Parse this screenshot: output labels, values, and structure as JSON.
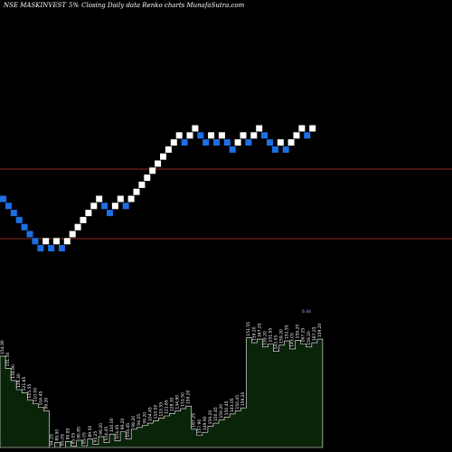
{
  "header": {
    "symbol": "NSE MASKINVEST",
    "box_size": "5%",
    "desc": "Closing Daily data  Renko  charts MunafaSutra.com"
  },
  "colors": {
    "background": "#000000",
    "up_brick": "#ffffff",
    "down_brick": "#1e6fe6",
    "ref_line": "#8b2c1f",
    "volume_fill": "#0a240a",
    "volume_stroke": "#ffffff",
    "vol_label": "#ffffff",
    "special_label": "#8fb4ff"
  },
  "chart_data": {
    "type": "renko",
    "reference_levels": [
      "upper",
      "lower"
    ],
    "bricks": [
      {
        "i": 0,
        "level": 0,
        "dir": "down"
      },
      {
        "i": 1,
        "level": -1,
        "dir": "down"
      },
      {
        "i": 2,
        "level": -2,
        "dir": "down"
      },
      {
        "i": 3,
        "level": -3,
        "dir": "down"
      },
      {
        "i": 4,
        "level": -4,
        "dir": "down"
      },
      {
        "i": 5,
        "level": -5,
        "dir": "down"
      },
      {
        "i": 6,
        "level": -6,
        "dir": "down"
      },
      {
        "i": 7,
        "level": -7,
        "dir": "down"
      },
      {
        "i": 8,
        "level": -6,
        "dir": "up"
      },
      {
        "i": 9,
        "level": -7,
        "dir": "down"
      },
      {
        "i": 10,
        "level": -6,
        "dir": "up"
      },
      {
        "i": 11,
        "level": -7,
        "dir": "down"
      },
      {
        "i": 12,
        "level": -6,
        "dir": "up"
      },
      {
        "i": 13,
        "level": -5,
        "dir": "up"
      },
      {
        "i": 14,
        "level": -4,
        "dir": "up"
      },
      {
        "i": 15,
        "level": -3,
        "dir": "up"
      },
      {
        "i": 16,
        "level": -2,
        "dir": "up"
      },
      {
        "i": 17,
        "level": -1,
        "dir": "up"
      },
      {
        "i": 18,
        "level": 0,
        "dir": "up"
      },
      {
        "i": 19,
        "level": -1,
        "dir": "down"
      },
      {
        "i": 20,
        "level": -2,
        "dir": "down"
      },
      {
        "i": 21,
        "level": -1,
        "dir": "up"
      },
      {
        "i": 22,
        "level": 0,
        "dir": "up"
      },
      {
        "i": 23,
        "level": -1,
        "dir": "down"
      },
      {
        "i": 24,
        "level": 0,
        "dir": "up"
      },
      {
        "i": 25,
        "level": 1,
        "dir": "up"
      },
      {
        "i": 26,
        "level": 2,
        "dir": "up"
      },
      {
        "i": 27,
        "level": 3,
        "dir": "up"
      },
      {
        "i": 28,
        "level": 4,
        "dir": "up"
      },
      {
        "i": 29,
        "level": 5,
        "dir": "up"
      },
      {
        "i": 30,
        "level": 6,
        "dir": "up"
      },
      {
        "i": 31,
        "level": 7,
        "dir": "up"
      },
      {
        "i": 32,
        "level": 8,
        "dir": "up"
      },
      {
        "i": 33,
        "level": 9,
        "dir": "up"
      },
      {
        "i": 34,
        "level": 8,
        "dir": "down"
      },
      {
        "i": 35,
        "level": 9,
        "dir": "up"
      },
      {
        "i": 36,
        "level": 10,
        "dir": "up"
      },
      {
        "i": 37,
        "level": 9,
        "dir": "down"
      },
      {
        "i": 38,
        "level": 8,
        "dir": "down"
      },
      {
        "i": 39,
        "level": 9,
        "dir": "up"
      },
      {
        "i": 40,
        "level": 8,
        "dir": "down"
      },
      {
        "i": 41,
        "level": 9,
        "dir": "up"
      },
      {
        "i": 42,
        "level": 8,
        "dir": "down"
      },
      {
        "i": 43,
        "level": 7,
        "dir": "down"
      },
      {
        "i": 44,
        "level": 8,
        "dir": "up"
      },
      {
        "i": 45,
        "level": 9,
        "dir": "up"
      },
      {
        "i": 46,
        "level": 8,
        "dir": "down"
      },
      {
        "i": 47,
        "level": 9,
        "dir": "up"
      },
      {
        "i": 48,
        "level": 10,
        "dir": "up"
      },
      {
        "i": 49,
        "level": 9,
        "dir": "down"
      },
      {
        "i": 50,
        "level": 8,
        "dir": "down"
      },
      {
        "i": 51,
        "level": 7,
        "dir": "down"
      },
      {
        "i": 52,
        "level": 8,
        "dir": "up"
      },
      {
        "i": 53,
        "level": 7,
        "dir": "down"
      },
      {
        "i": 54,
        "level": 8,
        "dir": "up"
      },
      {
        "i": 55,
        "level": 9,
        "dir": "up"
      },
      {
        "i": 56,
        "level": 10,
        "dir": "up"
      },
      {
        "i": 57,
        "level": 9,
        "dir": "down"
      },
      {
        "i": 58,
        "level": 10,
        "dir": "up"
      }
    ],
    "volume_labels": [
      "154.90",
      "151.50",
      "134.90",
      "128.30",
      "121.65",
      "115.55",
      "110.00",
      "104.45",
      "99.20",
      "94.25",
      "89.50",
      "85.05",
      "80.85",
      "85.05",
      "80.85",
      "85.05",
      "89.50",
      "94.25",
      "99.20",
      "104.45",
      "110.00",
      "104.45",
      "99.20",
      "104.45",
      "99.20",
      "94.25",
      "99.20",
      "104.45",
      "110.00",
      "115.55",
      "121.65",
      "128.30",
      "134.90",
      "151.50",
      "159.20",
      "167.25",
      "157.90",
      "149.90",
      "159.20",
      "150.45",
      "159.20",
      "150.45",
      "143.05",
      "150.45",
      "159.20",
      "151.55",
      "159.20",
      "167.25",
      "159.20",
      "151.55",
      "143.05",
      "159.20",
      "151.55",
      "143.05",
      "159.20",
      "167.25",
      "159.20",
      "167.25",
      "159.20"
    ],
    "special_label": "6.44",
    "volume": [
      150,
      130,
      110,
      95,
      90,
      78,
      72,
      66,
      60,
      0,
      8,
      0,
      10,
      2,
      12,
      3,
      14,
      5,
      18,
      8,
      22,
      11,
      26,
      14,
      30,
      33,
      36,
      40,
      44,
      48,
      52,
      56,
      60,
      64,
      68,
      30,
      20,
      25,
      35,
      40,
      45,
      50,
      55,
      60,
      65,
      180,
      172,
      178,
      165,
      170,
      158,
      168,
      175,
      162,
      176,
      170,
      165,
      172,
      178
    ]
  }
}
